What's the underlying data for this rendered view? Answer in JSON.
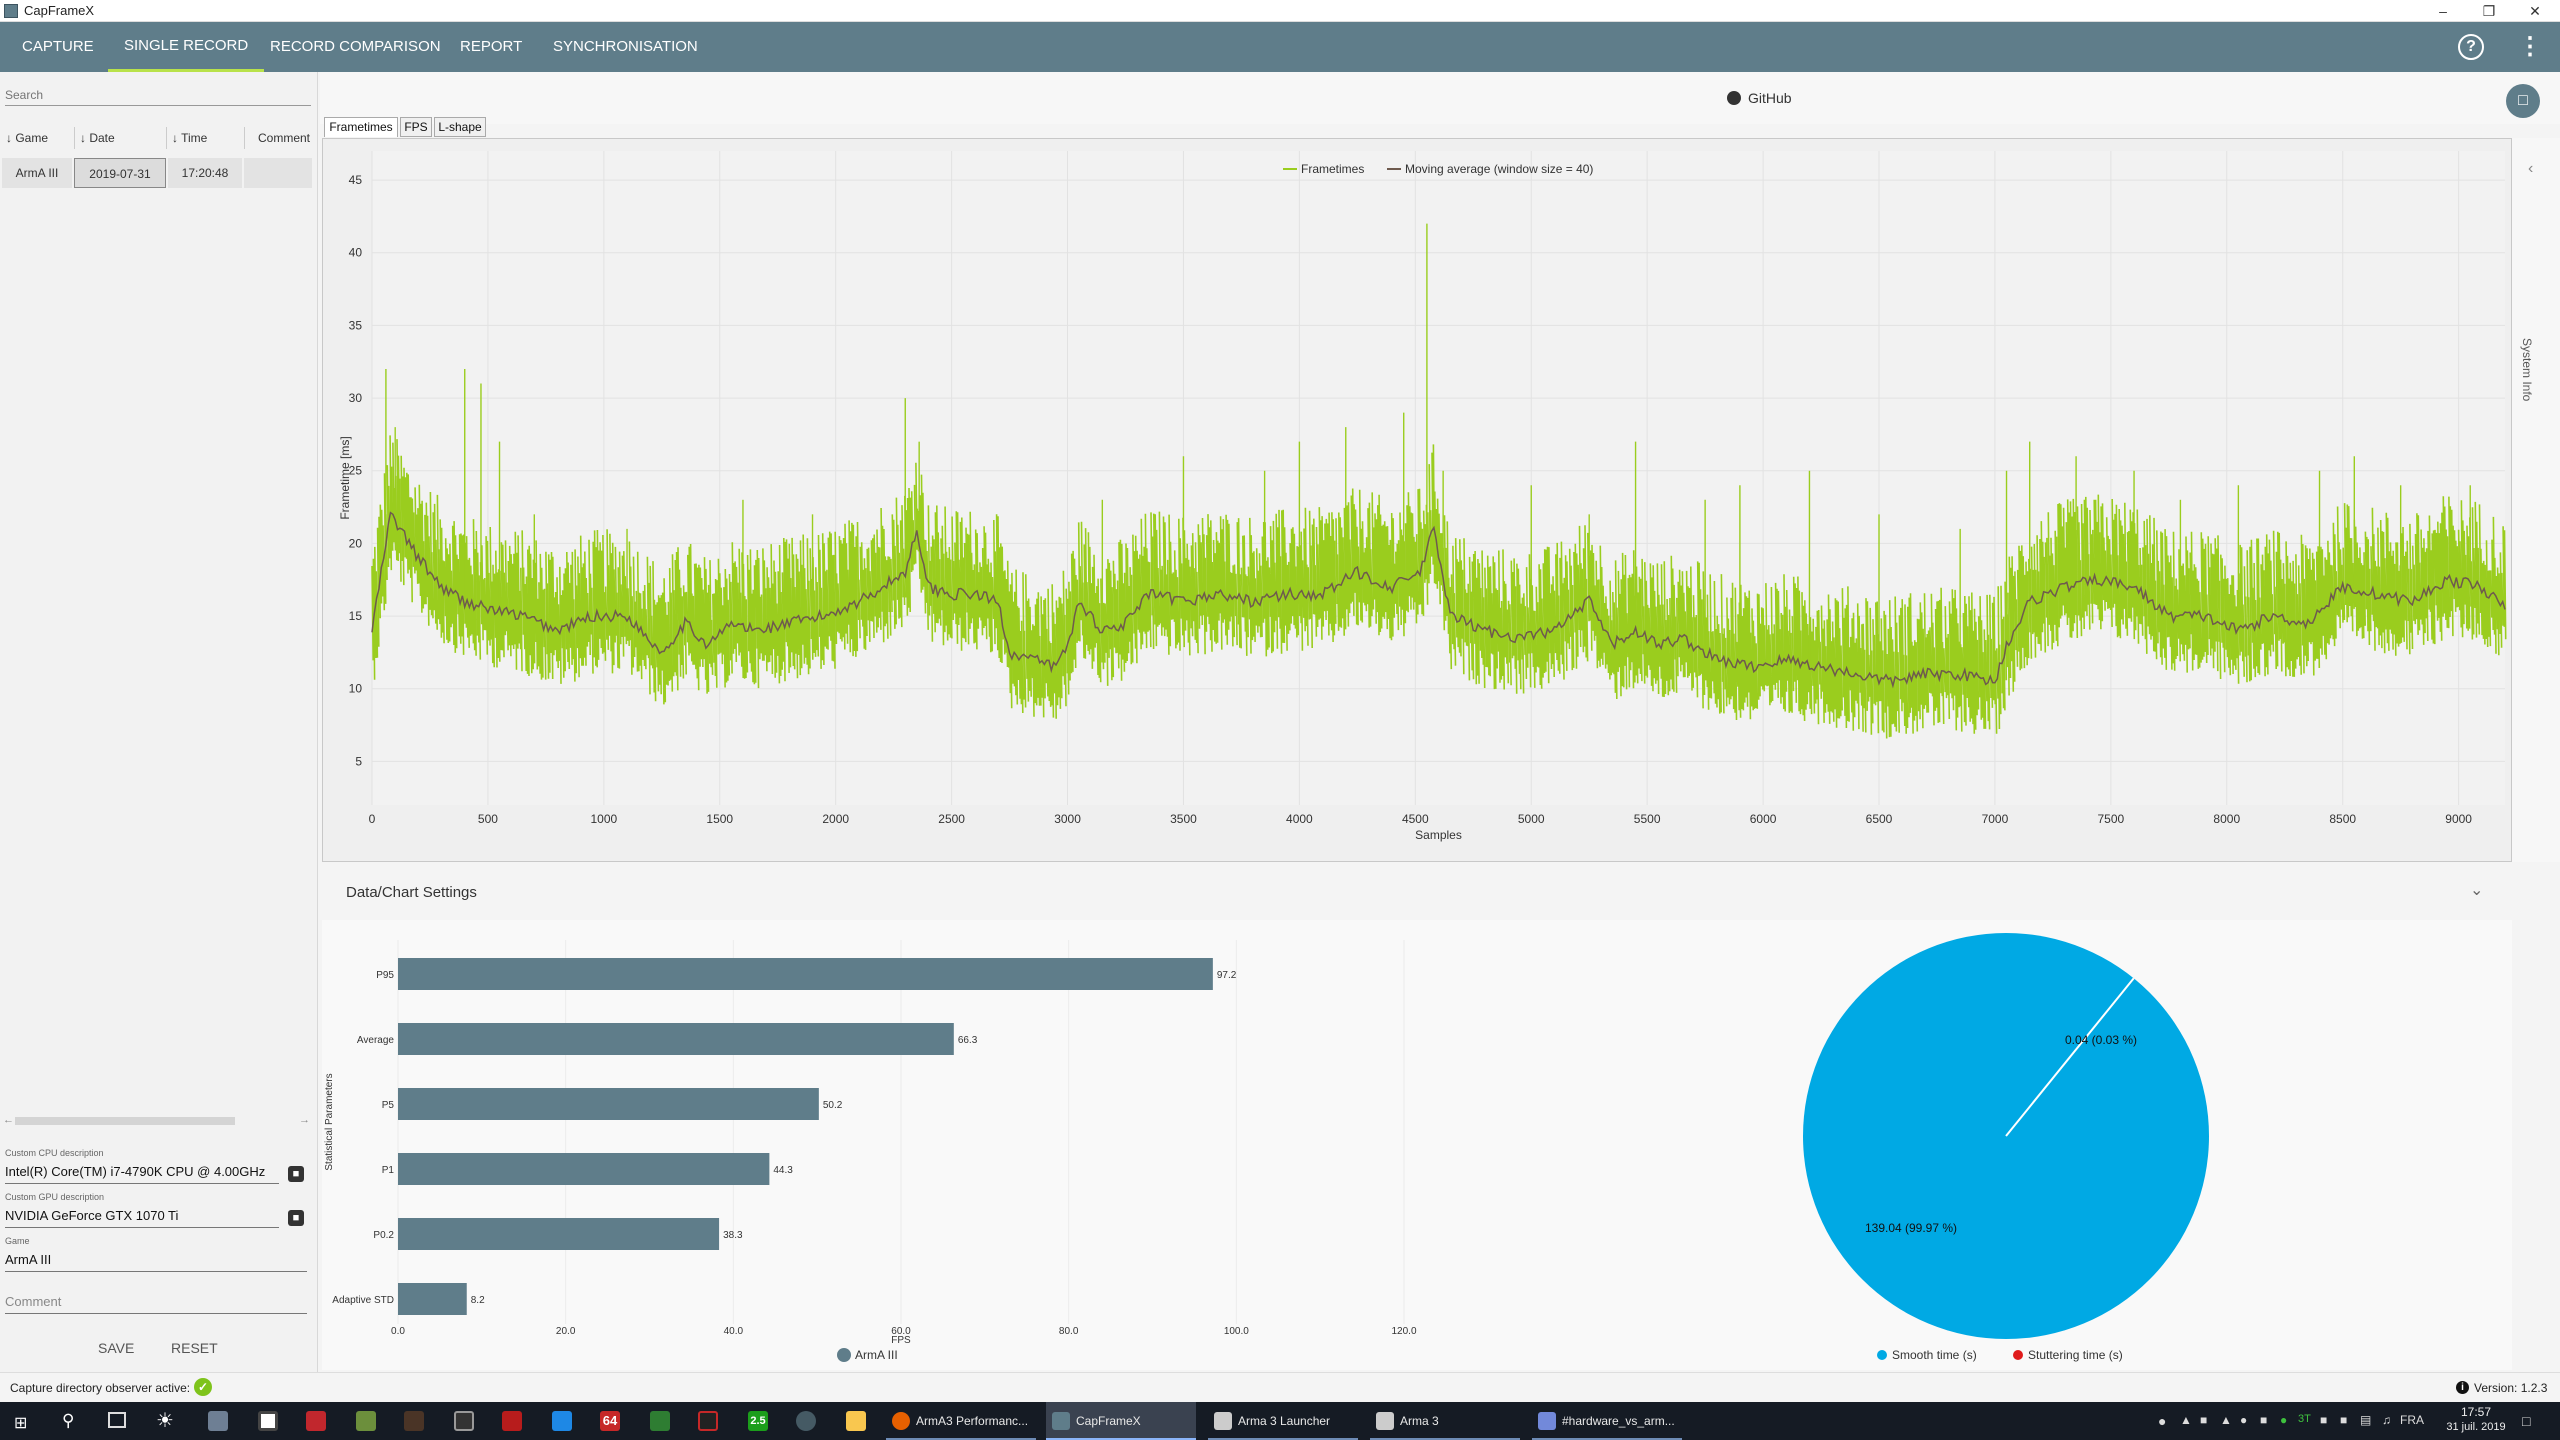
{
  "window": {
    "title": "CapFrameX"
  },
  "nav": {
    "tabs": [
      "CAPTURE",
      "SINGLE RECORD",
      "RECORD COMPARISON",
      "REPORT",
      "SYNCHRONISATION"
    ],
    "active": "SINGLE RECORD"
  },
  "left": {
    "search_placeholder": "Search",
    "columns": [
      "Game",
      "Date",
      "Time",
      "Comment"
    ],
    "row": {
      "game": "ArmA III",
      "date": "2019-07-31",
      "time": "17:20:48",
      "comment": ""
    },
    "cpu_label": "Custom CPU description",
    "cpu_value": "Intel(R) Core(TM) i7-4790K CPU @ 4.00GHz",
    "gpu_label": "Custom GPU description",
    "gpu_value": "NVIDIA GeForce GTX 1070 Ti",
    "game_label": "Game",
    "game_value": "ArmA III",
    "comment_placeholder": "Comment",
    "save_label": "SAVE",
    "reset_label": "RESET"
  },
  "main": {
    "github_label": "GitHub",
    "subtabs": [
      "Frametimes",
      "FPS",
      "L-shape"
    ],
    "active_subtab": "Frametimes",
    "system_info_label": "System Info",
    "settings_title": "Data/Chart Settings"
  },
  "chart_data": [
    {
      "type": "line",
      "xlabel": "Samples",
      "ylabel": "Frametime [ms]",
      "xlim": [
        0,
        9200
      ],
      "ylim": [
        2,
        47
      ],
      "xticks": [
        0,
        500,
        1000,
        1500,
        2000,
        2500,
        3000,
        3500,
        4000,
        4500,
        5000,
        5500,
        6000,
        6500,
        7000,
        7500,
        8000,
        8500,
        9000
      ],
      "yticks": [
        5,
        10,
        15,
        20,
        25,
        30,
        35,
        40,
        45
      ],
      "legend": "top-center",
      "series": [
        {
          "name": "Frametimes",
          "color": "#9acd1e"
        },
        {
          "name": "Moving average (window size = 40)",
          "color": "#6e5a4e"
        }
      ],
      "moving_average_points": [
        [
          0,
          14
        ],
        [
          80,
          22
        ],
        [
          200,
          19
        ],
        [
          300,
          17
        ],
        [
          400,
          16
        ],
        [
          500,
          15.5
        ],
        [
          650,
          15
        ],
        [
          800,
          14
        ],
        [
          950,
          15
        ],
        [
          1100,
          15
        ],
        [
          1250,
          12.5
        ],
        [
          1350,
          14.5
        ],
        [
          1450,
          13
        ],
        [
          1550,
          14.5
        ],
        [
          1650,
          14
        ],
        [
          1800,
          14.5
        ],
        [
          1950,
          15
        ],
        [
          2100,
          16
        ],
        [
          2200,
          17
        ],
        [
          2300,
          18
        ],
        [
          2350,
          21
        ],
        [
          2400,
          17
        ],
        [
          2500,
          16.5
        ],
        [
          2600,
          16.5
        ],
        [
          2700,
          16
        ],
        [
          2750,
          12.5
        ],
        [
          2850,
          12
        ],
        [
          2950,
          11.5
        ],
        [
          3000,
          13
        ],
        [
          3050,
          16
        ],
        [
          3150,
          14
        ],
        [
          3250,
          14.5
        ],
        [
          3350,
          16.5
        ],
        [
          3500,
          16
        ],
        [
          3650,
          16.5
        ],
        [
          3800,
          16
        ],
        [
          3950,
          16.5
        ],
        [
          4100,
          16.5
        ],
        [
          4250,
          18
        ],
        [
          4400,
          17
        ],
        [
          4520,
          18
        ],
        [
          4580,
          21
        ],
        [
          4650,
          15
        ],
        [
          4800,
          14
        ],
        [
          4950,
          13.5
        ],
        [
          5100,
          14
        ],
        [
          5250,
          16
        ],
        [
          5350,
          13
        ],
        [
          5450,
          14
        ],
        [
          5550,
          13
        ],
        [
          5650,
          13.5
        ],
        [
          5800,
          12
        ],
        [
          5950,
          11.5
        ],
        [
          6100,
          12
        ],
        [
          6250,
          11.5
        ],
        [
          6400,
          11
        ],
        [
          6550,
          10.5
        ],
        [
          6700,
          11
        ],
        [
          6850,
          11
        ],
        [
          7000,
          10.5
        ],
        [
          7050,
          13
        ],
        [
          7150,
          16
        ],
        [
          7300,
          17
        ],
        [
          7450,
          17.5
        ],
        [
          7600,
          17
        ],
        [
          7750,
          15
        ],
        [
          7900,
          15
        ],
        [
          8050,
          14
        ],
        [
          8200,
          15
        ],
        [
          8350,
          14.5
        ],
        [
          8500,
          17
        ],
        [
          8650,
          16.5
        ],
        [
          8800,
          16
        ],
        [
          8950,
          17.5
        ],
        [
          9100,
          17
        ],
        [
          9200,
          15.5
        ]
      ],
      "spike_points": [
        [
          60,
          32
        ],
        [
          100,
          28
        ],
        [
          400,
          32
        ],
        [
          470,
          31
        ],
        [
          550,
          27
        ],
        [
          700,
          22
        ],
        [
          1100,
          21
        ],
        [
          1600,
          23
        ],
        [
          1900,
          22
        ],
        [
          2300,
          30
        ],
        [
          2360,
          27
        ],
        [
          3150,
          23
        ],
        [
          3500,
          26
        ],
        [
          3850,
          25
        ],
        [
          4000,
          27
        ],
        [
          4200,
          28
        ],
        [
          4450,
          29
        ],
        [
          4550,
          42
        ],
        [
          4620,
          25
        ],
        [
          5000,
          24
        ],
        [
          5250,
          22
        ],
        [
          5450,
          27
        ],
        [
          5750,
          23
        ],
        [
          5900,
          24
        ],
        [
          6200,
          25
        ],
        [
          6500,
          22
        ],
        [
          6850,
          21
        ],
        [
          7050,
          25
        ],
        [
          7150,
          27
        ],
        [
          7350,
          26
        ],
        [
          7600,
          25
        ],
        [
          7800,
          23
        ],
        [
          8050,
          24
        ],
        [
          8400,
          25
        ],
        [
          8550,
          26
        ],
        [
          8750,
          24
        ],
        [
          9050,
          24
        ]
      ]
    },
    {
      "type": "bar",
      "orientation": "horizontal",
      "ylabel": "Statistical Parameters",
      "xlabel": "FPS",
      "xlim": [
        0,
        120
      ],
      "xticks": [
        "0.0",
        "20.0",
        "40.0",
        "60.0",
        "80.0",
        "100.0",
        "120.0"
      ],
      "categories": [
        "P95",
        "Average",
        "P5",
        "P1",
        "P0.2",
        "Adaptive STD"
      ],
      "values": [
        97.2,
        66.3,
        50.2,
        44.3,
        38.3,
        8.2
      ],
      "value_labels": [
        "97.2",
        "66.3",
        "50.2",
        "44.3",
        "38.3",
        "8.2"
      ],
      "legend": "bottom",
      "series": [
        {
          "name": "ArmA III",
          "color": "#5f7d8a"
        }
      ]
    },
    {
      "type": "pie",
      "slices": [
        {
          "name": "Smooth time (s)",
          "value": 139.04,
          "label": "139.04 (99.97 %)",
          "color": "#00a9e4"
        },
        {
          "name": "Stuttering time (s)",
          "value": 0.04,
          "label": "0.04 (0.03 %)",
          "color": "#e01b1b"
        }
      ],
      "legend": "bottom"
    }
  ],
  "status": {
    "text": "Capture directory observer active:",
    "version": "Version: 1.2.3"
  },
  "taskbar": {
    "apps": [
      "ArmA3 Performanc...",
      "CapFrameX",
      "Arma 3 Launcher",
      "Arma 3",
      "#hardware_vs_arm..."
    ],
    "pinned_icons": [
      "start-icon",
      "search-icon",
      "task-view-icon",
      "brightness-icon",
      "app-icon",
      "calculator-icon",
      "filezilla-icon",
      "app-icon",
      "app-icon",
      "app-icon",
      "app-icon",
      "app-icon",
      "aida64-icon",
      "app-icon",
      "app-icon",
      "app-icon",
      "app-icon",
      "folder-icon"
    ],
    "pinned_texts": [
      "64",
      "2.5"
    ],
    "tray_text": "3T",
    "lang": "FRA",
    "time": "17:57",
    "date": "31 juil. 2019"
  }
}
